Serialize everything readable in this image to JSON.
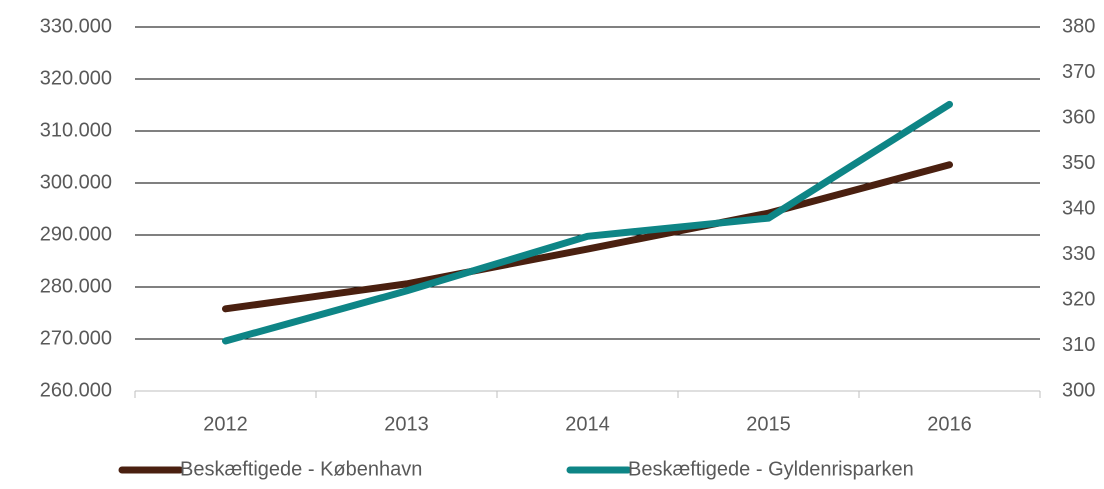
{
  "chart_data": {
    "type": "line",
    "categories": [
      "2012",
      "2013",
      "2014",
      "2015",
      "2016"
    ],
    "series": [
      {
        "name": "Beskæftigede - København",
        "color": "#4a2010",
        "values": [
          275800,
          280600,
          287300,
          294200,
          303500
        ]
      },
      {
        "name": "Beskæftigede - Gyldenrisparken",
        "color": "#0e8586",
        "axis": "y2",
        "values": [
          311,
          322,
          334,
          338,
          363
        ]
      }
    ],
    "ylim": [
      260000,
      330000
    ],
    "yticks": [
      {
        "value": 260000,
        "label": "260.000"
      },
      {
        "value": 270000,
        "label": "270.000"
      },
      {
        "value": 280000,
        "label": "280.000"
      },
      {
        "value": 290000,
        "label": "290.000"
      },
      {
        "value": 300000,
        "label": "300.000"
      },
      {
        "value": 310000,
        "label": "310.000"
      },
      {
        "value": 320000,
        "label": "320.000"
      },
      {
        "value": 330000,
        "label": "330.000"
      }
    ],
    "y2lim": [
      300,
      380
    ],
    "y2ticks": [
      300,
      310,
      320,
      330,
      340,
      350,
      360,
      370,
      380
    ],
    "grid": true,
    "legend": "bottom"
  }
}
